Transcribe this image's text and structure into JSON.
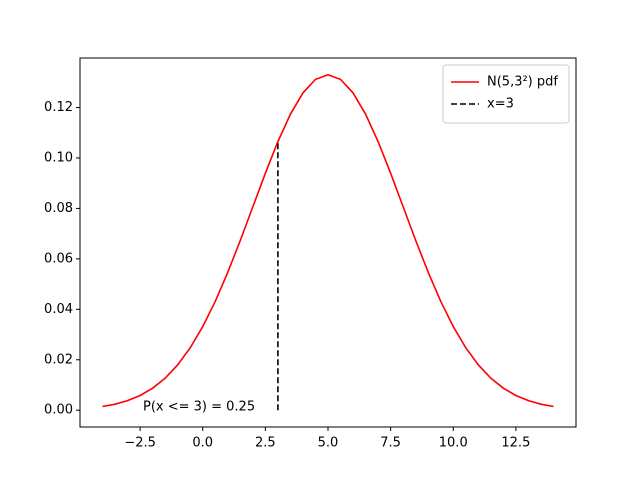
{
  "chart_data": {
    "type": "line",
    "series": [
      {
        "name": "N(5,3²) pdf",
        "color": "#ff0000",
        "dash": false,
        "x": [
          -4,
          -3.5,
          -3,
          -2.5,
          -2,
          -1.5,
          -1,
          -0.5,
          0,
          0.5,
          1,
          1.5,
          2,
          2.5,
          3,
          3.5,
          4,
          4.5,
          5,
          5.5,
          6,
          6.5,
          7,
          7.5,
          8,
          8.5,
          9,
          9.5,
          10,
          10.5,
          11,
          11.5,
          12,
          12.5,
          13,
          13.5,
          14
        ],
        "values": [
          0.00148,
          0.0024,
          0.0038,
          0.00584,
          0.00874,
          0.01272,
          0.018,
          0.02477,
          0.03316,
          0.04317,
          0.05467,
          0.06733,
          0.08066,
          0.09397,
          0.10648,
          0.11736,
          0.12579,
          0.13115,
          0.13298,
          0.13115,
          0.12579,
          0.11736,
          0.10648,
          0.09397,
          0.08066,
          0.06733,
          0.05467,
          0.04317,
          0.03316,
          0.02477,
          0.018,
          0.01272,
          0.00874,
          0.00584,
          0.0038,
          0.0024,
          0.00148
        ]
      },
      {
        "name": "x=3",
        "color": "#000000",
        "dash": true,
        "x": [
          3,
          3
        ],
        "values": [
          0,
          0.10648
        ]
      }
    ],
    "annotations": [
      "P(x <= 3) = 0.25"
    ],
    "xlim": [
      -4.9,
      14.9
    ],
    "ylim": [
      -0.00665,
      0.13963
    ],
    "xticks": [
      {
        "value": -2.5,
        "label": "−2.5"
      },
      {
        "value": 0,
        "label": "0.0"
      },
      2.5,
      {
        "value": 5,
        "label": "5.0"
      },
      7.5,
      {
        "value": 10,
        "label": "10.0"
      },
      12.5
    ],
    "yticks": [
      {
        "value": 0,
        "label": "0.00"
      },
      {
        "value": 0.02,
        "label": "0.02"
      },
      {
        "value": 0.04,
        "label": "0.04"
      },
      {
        "value": 0.06,
        "label": "0.06"
      },
      {
        "value": 0.08,
        "label": "0.08"
      },
      {
        "value": 0.1,
        "label": "0.10"
      },
      {
        "value": 0.12,
        "label": "0.12"
      }
    ],
    "legend": "upper right",
    "grid": false
  }
}
